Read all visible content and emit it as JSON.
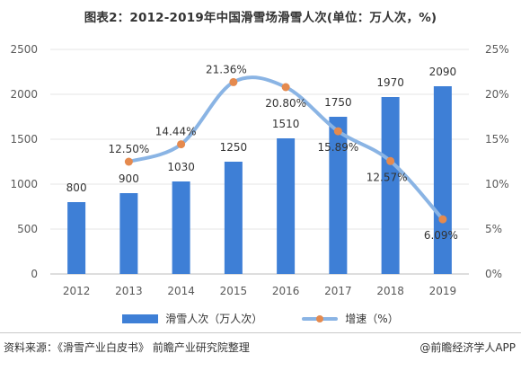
{
  "title": "图表2：2012-2019年中国滑雪场滑雪人次(单位：万人次，%)",
  "chart_data": {
    "type": "bar",
    "categories": [
      "2012",
      "2013",
      "2014",
      "2015",
      "2016",
      "2017",
      "2018",
      "2019"
    ],
    "series": [
      {
        "name": "滑雪人次（万人次）",
        "type": "bar",
        "axis": "left",
        "values": [
          800,
          900,
          1030,
          1250,
          1510,
          1750,
          1970,
          2090
        ],
        "labels": [
          "800",
          "900",
          "1030",
          "1250",
          "1510",
          "1750",
          "1970",
          "2090"
        ]
      },
      {
        "name": "增速（%）",
        "type": "line",
        "axis": "right",
        "values": [
          null,
          12.5,
          14.44,
          21.36,
          20.8,
          15.89,
          12.57,
          6.09
        ],
        "labels": [
          "",
          "12.50%",
          "14.44%",
          "21.36%",
          "20.80%",
          "15.89%",
          "12.57%",
          "6.09%"
        ]
      }
    ],
    "y_left": {
      "min": 0,
      "max": 2500,
      "ticks": [
        "0",
        "500",
        "1000",
        "1500",
        "2000",
        "2500"
      ]
    },
    "y_right": {
      "min": 0,
      "max": 25,
      "ticks": [
        "0%",
        "5%",
        "10%",
        "15%",
        "20%",
        "25%"
      ]
    },
    "grid": true,
    "legend_position": "bottom"
  },
  "colors": {
    "bar": "#3e7fd6",
    "line": "#8ab4e4",
    "marker": "#e58a4e",
    "grid": "#e4e4e4",
    "text": "#333333"
  },
  "footer": {
    "source": "资料来源：《滑雪产业白皮书》 前瞻产业研究院整理",
    "credit": "@前瞻经济学人APP"
  }
}
